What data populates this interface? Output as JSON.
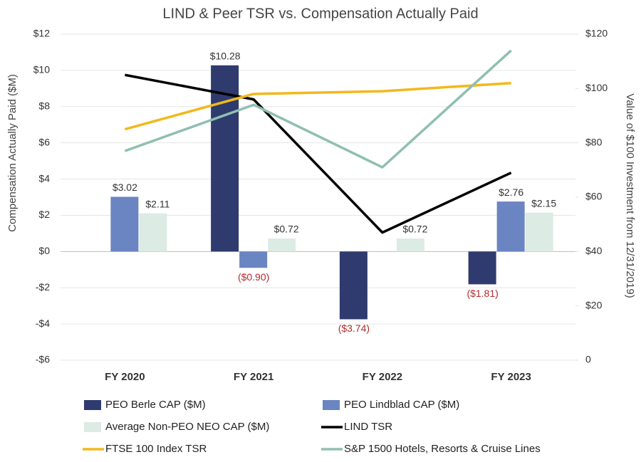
{
  "chart_data": {
    "type": "bar-line",
    "title": "LIND & Peer TSR vs. Compensation Actually Paid",
    "ylabel": "Compensation Actually Paid ($M)",
    "y2label": "Value of $100 Investment from 12/31/2019)",
    "categories": [
      "FY 2020",
      "FY 2021",
      "FY 2022",
      "FY 2023"
    ],
    "ylim": [
      -6,
      12
    ],
    "yticks": [
      {
        "value": -6,
        "label": "-$6"
      },
      {
        "value": -4,
        "label": "-$4"
      },
      {
        "value": -2,
        "label": "-$2"
      },
      {
        "value": 0,
        "label": "$0"
      },
      {
        "value": 2,
        "label": "$2"
      },
      {
        "value": 4,
        "label": "$4"
      },
      {
        "value": 6,
        "label": "$6"
      },
      {
        "value": 8,
        "label": "$8"
      },
      {
        "value": 10,
        "label": "$10"
      },
      {
        "value": 12,
        "label": "$12"
      }
    ],
    "y2lim": [
      0,
      120
    ],
    "y2ticks": [
      0,
      {
        "value": 20,
        "label": "$20"
      },
      {
        "value": 40,
        "label": "$40"
      },
      {
        "value": 60,
        "label": "$60"
      },
      {
        "value": 80,
        "label": "$80"
      },
      {
        "value": 100,
        "label": "$100"
      },
      {
        "value": 120,
        "label": "$120"
      }
    ],
    "grid": true,
    "series": [
      {
        "name": "PEO Berle CAP ($M)",
        "kind": "bar",
        "color": "#2f3b6e",
        "values": [
          null,
          10.28,
          -3.74,
          -1.81
        ],
        "value_labels": [
          null,
          "$10.28",
          "($3.74)",
          "($1.81)"
        ]
      },
      {
        "name": "PEO Lindblad CAP ($M)",
        "kind": "bar",
        "color": "#6b84c2",
        "values": [
          3.02,
          -0.9,
          null,
          2.76
        ],
        "value_labels": [
          "$3.02",
          "($0.90)",
          null,
          "$2.76"
        ]
      },
      {
        "name": "Average Non-PEO NEO CAP ($M)",
        "kind": "bar",
        "color": "#dcebe4",
        "values": [
          2.11,
          0.72,
          0.72,
          2.15
        ],
        "value_labels": [
          "$2.11",
          "$0.72",
          "$0.72",
          "$2.15"
        ]
      },
      {
        "name": "LIND TSR",
        "kind": "line",
        "axis": "y2",
        "color": "#000000",
        "values": [
          105,
          96,
          47,
          69
        ]
      },
      {
        "name": "FTSE 100 Index TSR",
        "kind": "line",
        "axis": "y2",
        "color": "#f2b81c",
        "values": [
          85,
          98,
          99,
          102
        ]
      },
      {
        "name": "S&P 1500 Hotels, Resorts & Cruise Lines",
        "kind": "line",
        "axis": "y2",
        "color": "#8fbfb1",
        "values": [
          77,
          94,
          71,
          114
        ]
      }
    ]
  }
}
